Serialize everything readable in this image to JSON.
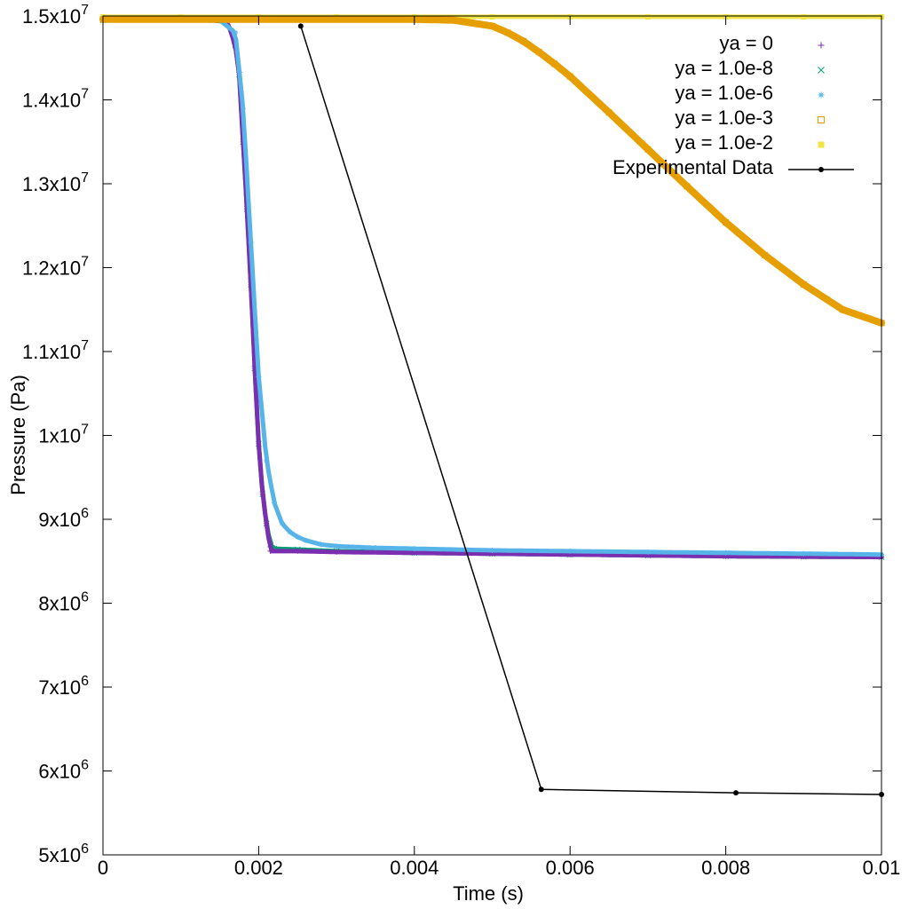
{
  "chart_data": {
    "type": "scatter",
    "xlabel": "Time (s)",
    "ylabel": "Pressure (Pa)",
    "xlim": [
      0,
      0.01
    ],
    "ylim": [
      5000000,
      15000000
    ],
    "grid": false,
    "legend_position": "top-right",
    "x_ticks": [
      {
        "value": 0,
        "label": "0"
      },
      {
        "value": 0.002,
        "label": "0.002"
      },
      {
        "value": 0.004,
        "label": "0.004"
      },
      {
        "value": 0.006,
        "label": "0.006"
      },
      {
        "value": 0.008,
        "label": "0.008"
      },
      {
        "value": 0.01,
        "label": "0.01"
      }
    ],
    "y_ticks": [
      {
        "value": 5000000,
        "mantissa": "5x10",
        "exp": "6"
      },
      {
        "value": 6000000,
        "mantissa": "6x10",
        "exp": "6"
      },
      {
        "value": 7000000,
        "mantissa": "7x10",
        "exp": "6"
      },
      {
        "value": 8000000,
        "mantissa": "8x10",
        "exp": "6"
      },
      {
        "value": 9000000,
        "mantissa": "9x10",
        "exp": "6"
      },
      {
        "value": 10000000,
        "mantissa": "1x10",
        "exp": "7"
      },
      {
        "value": 11000000,
        "mantissa": "1.1x10",
        "exp": "7"
      },
      {
        "value": 12000000,
        "mantissa": "1.2x10",
        "exp": "7"
      },
      {
        "value": 13000000,
        "mantissa": "1.3x10",
        "exp": "7"
      },
      {
        "value": 14000000,
        "mantissa": "1.4x10",
        "exp": "7"
      },
      {
        "value": 15000000,
        "mantissa": "1.5x10",
        "exp": "7"
      }
    ],
    "series": [
      {
        "name": "ya = 0",
        "color": "#7b2fb0",
        "marker": "plus",
        "x": [
          0,
          0.0014,
          0.0016,
          0.0017,
          0.00175,
          0.0018,
          0.00185,
          0.0019,
          0.00195,
          0.002,
          0.00205,
          0.0021,
          0.00215,
          0.0025,
          0.003,
          0.004,
          0.005,
          0.006,
          0.007,
          0.008,
          0.009,
          0.01
        ],
        "y": [
          14950000,
          14950000,
          14930000,
          14650000,
          14300000,
          13500000,
          12700000,
          11800000,
          10800000,
          9900000,
          9300000,
          8950000,
          8620000,
          8620000,
          8610000,
          8600000,
          8590000,
          8580000,
          8570000,
          8560000,
          8555000,
          8550000
        ]
      },
      {
        "name": "ya = 1.0e-8",
        "color": "#009e73",
        "marker": "cross",
        "x": [
          0,
          0.0014,
          0.0016,
          0.0017,
          0.00175,
          0.0018,
          0.00185,
          0.0019,
          0.00195,
          0.002,
          0.00205,
          0.0021,
          0.00215,
          0.0022,
          0.0025,
          0.003,
          0.004,
          0.005,
          0.006,
          0.007,
          0.008,
          0.009,
          0.01
        ],
        "y": [
          14950000,
          14950000,
          14930000,
          14650000,
          14300000,
          13500000,
          12700000,
          11800000,
          10800000,
          9900000,
          9300000,
          8950000,
          8700000,
          8650000,
          8640000,
          8620000,
          8600000,
          8590000,
          8580000,
          8570000,
          8560000,
          8555000,
          8550000
        ]
      },
      {
        "name": "ya = 1.0e-6",
        "color": "#56b4e9",
        "marker": "star",
        "x": [
          0,
          0.0015,
          0.0017,
          0.0018,
          0.0019,
          0.002,
          0.0021,
          0.0022,
          0.0023,
          0.0024,
          0.0025,
          0.0026,
          0.0028,
          0.003,
          0.0035,
          0.004,
          0.005,
          0.006,
          0.007,
          0.008,
          0.009,
          0.01
        ],
        "y": [
          14950000,
          14950000,
          14800000,
          13900000,
          12300000,
          10700000,
          9700000,
          9200000,
          8950000,
          8850000,
          8790000,
          8750000,
          8700000,
          8680000,
          8660000,
          8650000,
          8630000,
          8620000,
          8610000,
          8600000,
          8590000,
          8580000
        ]
      },
      {
        "name": "ya = 1.0e-3",
        "color": "#e69f00",
        "marker": "open-square",
        "x": [
          0,
          0.002,
          0.003,
          0.004,
          0.0045,
          0.005,
          0.0052,
          0.0054,
          0.0056,
          0.0058,
          0.006,
          0.0065,
          0.007,
          0.0075,
          0.008,
          0.0085,
          0.009,
          0.0095,
          0.01
        ],
        "y": [
          14960000,
          14960000,
          14960000,
          14960000,
          14950000,
          14880000,
          14800000,
          14700000,
          14570000,
          14430000,
          14280000,
          13850000,
          13410000,
          12970000,
          12540000,
          12150000,
          11800000,
          11500000,
          11340000
        ]
      },
      {
        "name": "ya = 1.0e-2",
        "color": "#f0e442",
        "marker": "filled-square",
        "x": [
          0,
          0.001,
          0.002,
          0.003,
          0.004,
          0.005,
          0.006,
          0.007,
          0.008,
          0.009,
          0.01
        ],
        "y": [
          14990000,
          14990000,
          14990000,
          14990000,
          14990000,
          14990000,
          14990000,
          14990000,
          14990000,
          14990000,
          14990000
        ]
      },
      {
        "name": "Experimental Data",
        "color": "#000000",
        "marker": "line-point",
        "x": [
          0.00254,
          0.00563,
          0.00813,
          0.01
        ],
        "y": [
          14880000,
          5780000,
          5740000,
          5720000
        ]
      }
    ]
  }
}
